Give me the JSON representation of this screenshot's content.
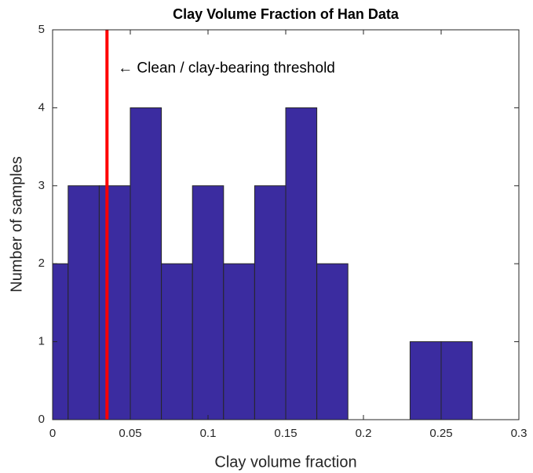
{
  "chart_data": {
    "type": "histogram",
    "title": "Clay Volume Fraction of Han Data",
    "xlabel": "Clay volume fraction",
    "ylabel": "Number of samples",
    "bins": [
      -0.01,
      0.01,
      0.03,
      0.05,
      0.07,
      0.09,
      0.11,
      0.13,
      0.15,
      0.17,
      0.19,
      0.21,
      0.23,
      0.25,
      0.27
    ],
    "counts": [
      2,
      3,
      3,
      4,
      2,
      3,
      2,
      3,
      4,
      2,
      0,
      0,
      1,
      1
    ],
    "color": "#3b2ca0",
    "edge_color": "#262626",
    "xlim": [
      0,
      0.3
    ],
    "xticks": [
      0,
      0.05,
      0.1,
      0.15,
      0.2,
      0.25,
      0.3
    ],
    "ylim": [
      0,
      5
    ],
    "yticks": [
      0,
      1,
      2,
      3,
      4,
      5
    ],
    "threshold": {
      "x": 0.035,
      "color": "#ff0000"
    },
    "annotation": {
      "text": "← Clean / clay-bearing threshold",
      "x": 0.042,
      "y": 4.5
    }
  }
}
